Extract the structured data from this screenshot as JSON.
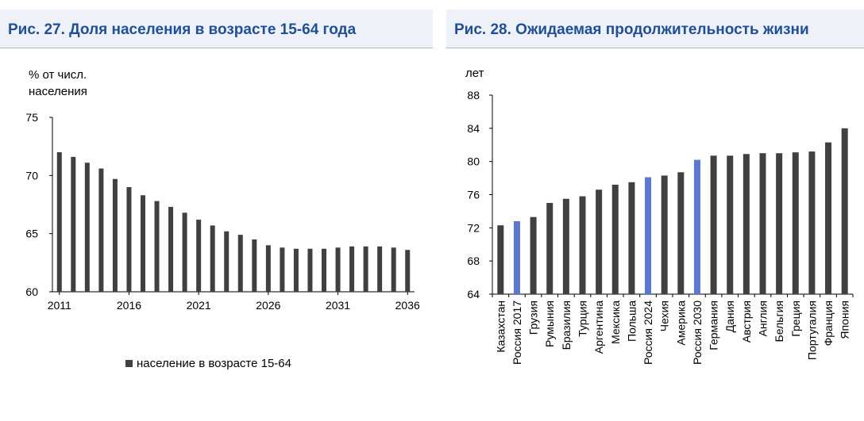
{
  "left_panel": {
    "title": "Рис. 27. Доля населения в возрасте 15-64 года",
    "unit_line1": "% от числ.",
    "unit_line2": "населения",
    "legend_label": "население в возрасте 15-64"
  },
  "right_panel": {
    "title": "Рис. 28. Ожидаемая продолжительность жизни",
    "unit": "лет"
  },
  "colors": {
    "bar": "#404040",
    "highlight": "#5b77d6",
    "title": "#1f4e9c"
  },
  "chart_data": [
    {
      "type": "bar",
      "title": "Рис. 27. Доля населения в возрасте 15-64 года",
      "ylabel": "% от числ. населения",
      "ylim": [
        60,
        75
      ],
      "yticks": [
        60,
        65,
        70,
        75
      ],
      "xtick_labels": [
        "2011",
        "2016",
        "2021",
        "2026",
        "2031",
        "2036"
      ],
      "categories": [
        "2011",
        "2012",
        "2013",
        "2014",
        "2015",
        "2016",
        "2017",
        "2018",
        "2019",
        "2020",
        "2021",
        "2022",
        "2023",
        "2024",
        "2025",
        "2026",
        "2027",
        "2028",
        "2029",
        "2030",
        "2031",
        "2032",
        "2033",
        "2034",
        "2035",
        "2036"
      ],
      "series": [
        {
          "name": "население в возрасте 15-64",
          "values": [
            72.0,
            71.6,
            71.1,
            70.6,
            69.7,
            69.0,
            68.3,
            67.8,
            67.3,
            66.8,
            66.2,
            65.7,
            65.2,
            64.9,
            64.5,
            64.0,
            63.8,
            63.7,
            63.7,
            63.7,
            63.8,
            63.9,
            63.9,
            63.9,
            63.8,
            63.6
          ]
        }
      ],
      "legend": "bottom"
    },
    {
      "type": "bar",
      "title": "Рис. 28. Ожидаемая продолжительность жизни",
      "ylabel": "лет",
      "ylim": [
        64,
        88
      ],
      "yticks": [
        64,
        68,
        72,
        76,
        80,
        84,
        88
      ],
      "categories": [
        "Казахстан",
        "Россия 2017",
        "Грузия",
        "Румыния",
        "Бразилия",
        "Турция",
        "Аргентина",
        "Мексика",
        "Польша",
        "Россия 2024",
        "Чехия",
        "Америка",
        "Россия 2030",
        "Германия",
        "Дания",
        "Австрия",
        "Англия",
        "Бельгия",
        "Греция",
        "Португалия",
        "Франция",
        "Япония"
      ],
      "values": [
        72.3,
        72.8,
        73.3,
        75.0,
        75.5,
        75.8,
        76.6,
        77.2,
        77.5,
        78.1,
        78.3,
        78.7,
        80.2,
        80.7,
        80.7,
        80.9,
        81.0,
        81.0,
        81.1,
        81.2,
        82.3,
        84.0
      ],
      "highlighted": [
        "Россия 2017",
        "Россия 2024",
        "Россия 2030"
      ]
    }
  ]
}
